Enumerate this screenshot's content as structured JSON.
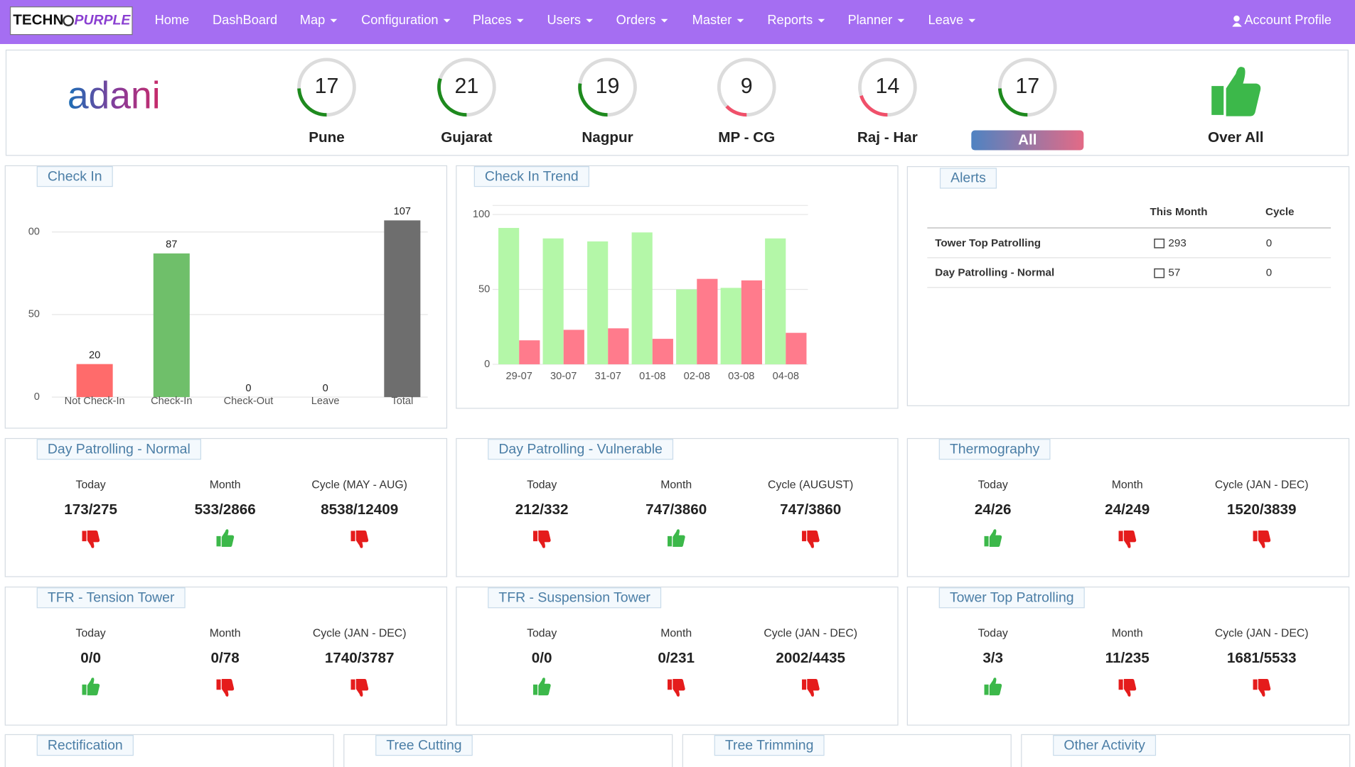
{
  "nav": {
    "brand": [
      "TECHN",
      "PURPLE"
    ],
    "items": [
      "Home",
      "DashBoard",
      "Map",
      "Configuration",
      "Places",
      "Users",
      "Orders",
      "Master",
      "Reports",
      "Planner",
      "Leave"
    ],
    "dropdown": [
      false,
      false,
      true,
      true,
      true,
      true,
      true,
      true,
      true,
      true,
      true
    ],
    "account": "Account Profile"
  },
  "company": "adani",
  "regions": {
    "gauge_range": [
      0,
      70
    ],
    "selected": 5,
    "items": [
      {
        "name": "Pune",
        "value": 17,
        "color": "#1e8a1e"
      },
      {
        "name": "Gujarat",
        "value": 21,
        "color": "#1e8a1e"
      },
      {
        "name": "Nagpur",
        "value": 19,
        "color": "#1e8a1e"
      },
      {
        "name": "MP - CG",
        "value": 9,
        "color": "#f0506a"
      },
      {
        "name": "Raj - Har",
        "value": 14,
        "color": "#f0506a"
      },
      {
        "name": "All",
        "value": 17,
        "color": "#1e8a1e"
      }
    ],
    "overall": "Over All"
  },
  "chart_data": [
    {
      "type": "bar",
      "title": "Check In",
      "categories": [
        "Not Check-In",
        "Check-In",
        "Check-Out",
        "Leave",
        "Total"
      ],
      "values": [
        20,
        87,
        0,
        0,
        107
      ],
      "colors": [
        "#ff6b6b",
        "#6fbf6a",
        "#4a90d9",
        "#f0c040",
        "#6e6e6e"
      ],
      "ylim": [
        0,
        115
      ],
      "yticks": [
        0,
        50,
        {
          "value": 100,
          "label": "00"
        }
      ],
      "grid": true
    },
    {
      "type": "grouped_bar",
      "title": "Check In Trend",
      "categories": [
        "29-07",
        "30-07",
        "31-07",
        "01-08",
        "02-08",
        "03-08",
        "04-08"
      ],
      "series": [
        {
          "color": "#b4f7a8",
          "values": [
            91,
            84,
            82,
            88,
            50,
            51,
            84
          ]
        },
        {
          "color": "#ff7b8c",
          "values": [
            16,
            23,
            24,
            17,
            57,
            56,
            21
          ]
        }
      ],
      "ylim": [
        0,
        106
      ],
      "yticks": [
        0,
        50,
        100
      ],
      "grid": true
    }
  ],
  "alerts": {
    "title": "Alerts",
    "columns": [
      "This Month",
      "Cycle"
    ],
    "rows": [
      [
        "Tower Top Patrolling",
        "293",
        "0"
      ],
      [
        "Day Patrolling - Normal",
        "57",
        "0"
      ]
    ]
  },
  "cards": [
    {
      "title": "Day Patrolling - Normal",
      "columns": [
        {
          "label": "Today",
          "value": "173/275",
          "status": "down"
        },
        {
          "label": "Month",
          "value": "533/2866",
          "status": "up"
        },
        {
          "label": "Cycle (MAY - AUG)",
          "value": "8538/12409",
          "status": "down"
        }
      ]
    },
    {
      "title": "Day Patrolling - Vulnerable",
      "columns": [
        {
          "label": "Today",
          "value": "212/332",
          "status": "down"
        },
        {
          "label": "Month",
          "value": "747/3860",
          "status": "up"
        },
        {
          "label": "Cycle (AUGUST)",
          "value": "747/3860",
          "status": "down"
        }
      ]
    },
    {
      "title": "Thermography",
      "columns": [
        {
          "label": "Today",
          "value": "24/26",
          "status": "up"
        },
        {
          "label": "Month",
          "value": "24/249",
          "status": "down"
        },
        {
          "label": "Cycle (JAN - DEC)",
          "value": "1520/3839",
          "status": "down"
        }
      ]
    },
    {
      "title": "TFR - Tension Tower",
      "columns": [
        {
          "label": "Today",
          "value": "0/0",
          "status": "up"
        },
        {
          "label": "Month",
          "value": "0/78",
          "status": "down"
        },
        {
          "label": "Cycle (JAN - DEC)",
          "value": "1740/3787",
          "status": "down"
        }
      ]
    },
    {
      "title": "TFR - Suspension Tower",
      "columns": [
        {
          "label": "Today",
          "value": "0/0",
          "status": "up"
        },
        {
          "label": "Month",
          "value": "0/231",
          "status": "down"
        },
        {
          "label": "Cycle (JAN - DEC)",
          "value": "2002/4435",
          "status": "down"
        }
      ]
    },
    {
      "title": "Tower Top Patrolling",
      "columns": [
        {
          "label": "Today",
          "value": "3/3",
          "status": "up"
        },
        {
          "label": "Month",
          "value": "11/235",
          "status": "down"
        },
        {
          "label": "Cycle (JAN - DEC)",
          "value": "1681/5533",
          "status": "down"
        }
      ]
    }
  ],
  "bottom_cards": [
    "Rectification",
    "Tree Cutting",
    "Tree Trimming",
    "Other Activity"
  ]
}
